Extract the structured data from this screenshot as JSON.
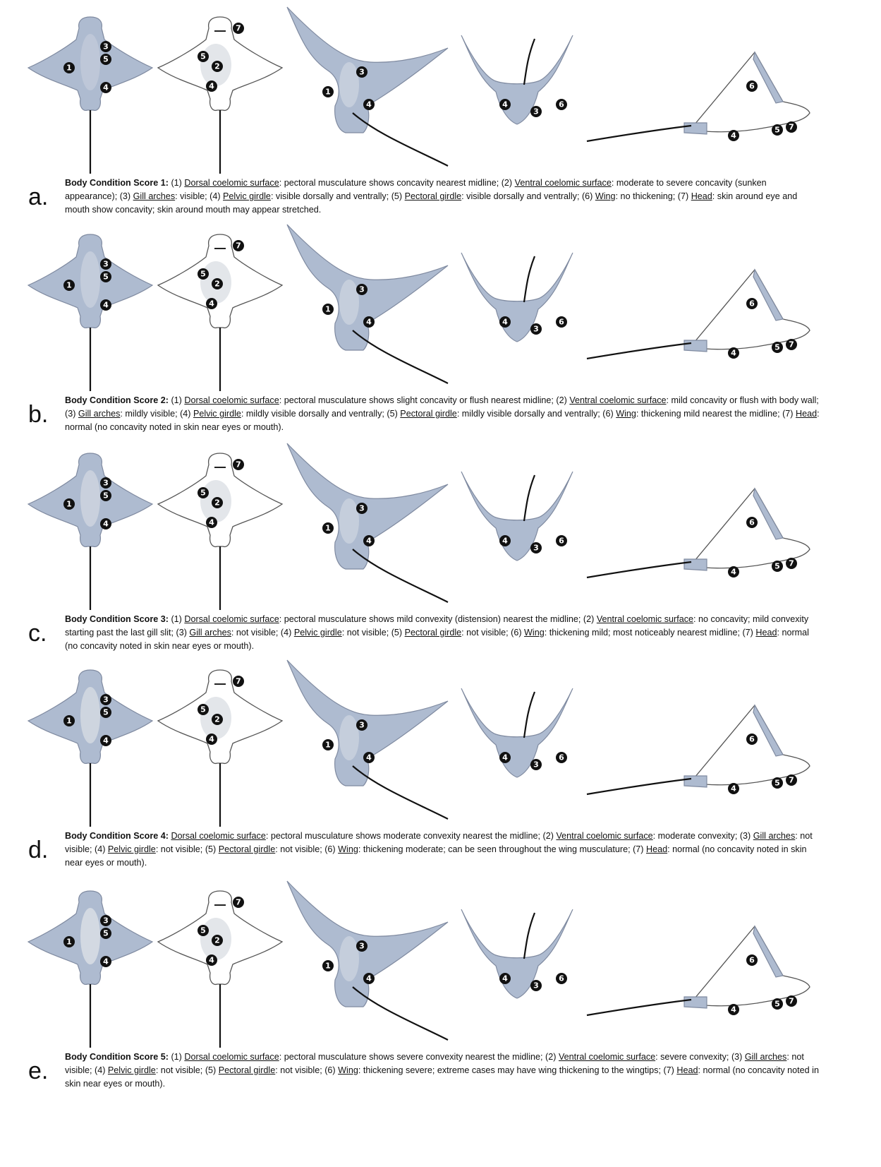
{
  "panels": [
    {
      "letter": "a.",
      "title": "Body Condition Score 1:",
      "criteria": [
        {
          "num": "(1)",
          "label": "Dorsal coelomic surface",
          "text": ": pectoral musculature shows concavity nearest midline; "
        },
        {
          "num": "(2)",
          "label": "Ventral coelomic surface",
          "text": ": moderate to severe concavity (sunken appearance); "
        },
        {
          "num": "(3)",
          "label": "Gill arches",
          "text": ": visible; "
        },
        {
          "num": "(4)",
          "label": "Pelvic girdle",
          "text": ": visible dorsally and ventrally; "
        },
        {
          "num": "(5)",
          "label": "Pectoral girdle",
          "text": ": visible dorsally and ventrally; "
        },
        {
          "num": "(6)",
          "label": "Wing",
          "text": ": no thickening; "
        },
        {
          "num": "(7)",
          "label": "Head",
          "text": ": skin around eye and mouth show concavity; skin around mouth may appear stretched."
        }
      ]
    },
    {
      "letter": "b.",
      "title": "Body Condition Score 2:",
      "criteria": [
        {
          "num": "(1)",
          "label": "Dorsal coelomic surface",
          "text": ": pectoral musculature shows slight concavity or flush nearest midline; "
        },
        {
          "num": "(2)",
          "label": "Ventral coelomic surface",
          "text": ": mild concavity or flush with body wall; "
        },
        {
          "num": "(3)",
          "label": "Gill arches",
          "text": ": mildly visible; "
        },
        {
          "num": "(4)",
          "label": "Pelvic girdle",
          "text": ": mildly visible dorsally and ventrally; "
        },
        {
          "num": "(5)",
          "label": "Pectoral girdle",
          "text": ": mildly visible dorsally and ventrally; "
        },
        {
          "num": "(6)",
          "label": "Wing",
          "text": ": thickening mild nearest the midline; "
        },
        {
          "num": "(7)",
          "label": "Head",
          "text": ": normal (no concavity noted in skin near eyes or mouth)."
        }
      ]
    },
    {
      "letter": "c.",
      "title": "Body Condition Score 3:",
      "criteria": [
        {
          "num": "(1)",
          "label": "Dorsal coelomic surface",
          "text": ": pectoral musculature shows mild convexity (distension) nearest the midline; "
        },
        {
          "num": "(2)",
          "label": "Ventral coelomic surface",
          "text": ": no concavity; mild convexity starting past the last gill slit; "
        },
        {
          "num": "(3)",
          "label": "Gill arches",
          "text": ": not visible; "
        },
        {
          "num": "(4)",
          "label": "Pelvic girdle",
          "text": ": not visible; "
        },
        {
          "num": "(5)",
          "label": "Pectoral girdle",
          "text": ": not visible; "
        },
        {
          "num": "(6)",
          "label": "Wing",
          "text": ": thickening mild; most noticeably nearest midline; "
        },
        {
          "num": "(7)",
          "label": "Head",
          "text": ": normal (no concavity noted in skin near eyes or mouth)."
        }
      ]
    },
    {
      "letter": "d.",
      "title": "Body Condition Score 4:",
      "criteria": [
        {
          "num": "",
          "label": "Dorsal coelomic surface",
          "text": ": pectoral musculature shows moderate convexity nearest the midline; "
        },
        {
          "num": "(2)",
          "label": "Ventral coelomic surface",
          "text": ": moderate convexity; "
        },
        {
          "num": "(3)",
          "label": "Gill arches",
          "text": ": not visible; "
        },
        {
          "num": "(4)",
          "label": "Pelvic girdle",
          "text": ": not visible; "
        },
        {
          "num": "(5)",
          "label": "Pectoral girdle",
          "text": ": not visible; "
        },
        {
          "num": "(6)",
          "label": "Wing",
          "text": ": thickening moderate; can be seen throughout the wing musculature; "
        },
        {
          "num": "(7)",
          "label": "Head",
          "text": ": normal (no concavity noted in skin near eyes or mouth)."
        }
      ]
    },
    {
      "letter": "e.",
      "title": "Body Condition Score 5:",
      "criteria": [
        {
          "num": "(1)",
          "label": "Dorsal coelomic surface",
          "text": ": pectoral musculature shows severe convexity nearest the midline; "
        },
        {
          "num": "(2)",
          "label": "Ventral coelomic surface",
          "text": ": severe convexity; "
        },
        {
          "num": "(3)",
          "label": "Gill arches",
          "text": ": not visible; "
        },
        {
          "num": "(4)",
          "label": "Pelvic girdle",
          "text": ": not visible; "
        },
        {
          "num": "(5)",
          "label": "Pectoral girdle",
          "text": ": not visible; "
        },
        {
          "num": "(6)",
          "label": "Wing",
          "text": ": thickening severe; extreme cases may have wing thickening to the wingtips; "
        },
        {
          "num": "(7)",
          "label": "Head",
          "text": ": normal (no concavity noted in skin near eyes or mouth)."
        }
      ]
    }
  ],
  "markers": {
    "dorsal": [
      "1",
      "3",
      "5",
      "4"
    ],
    "ventral": [
      "7",
      "5",
      "2",
      "4"
    ],
    "posterior": [
      "3",
      "1",
      "4"
    ],
    "frontal": [
      "4",
      "3",
      "6"
    ],
    "lateral": [
      "6",
      "4",
      "5",
      "7"
    ]
  },
  "colors": {
    "body_fill": "#aebbd0",
    "body_outline": "#7f8aa0",
    "marker_fill": "#111111",
    "marker_text": "#ffffff"
  }
}
